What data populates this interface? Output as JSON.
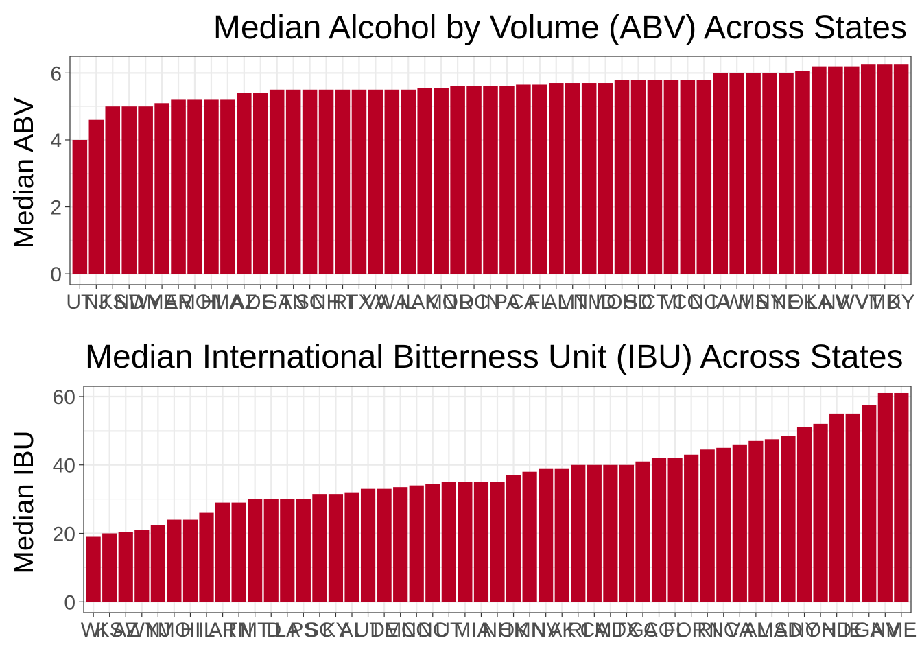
{
  "figure": {
    "bar_color": "#B80024",
    "grid_color": "#EBEBEB",
    "panel_border": "#333333"
  },
  "chart_data": [
    {
      "type": "bar",
      "title": "Median Alcohol by Volume (ABV) Across States",
      "xlabel": "",
      "ylabel": "Median ABV",
      "ylim": [
        0,
        6.5
      ],
      "yticks": [
        0,
        2,
        4,
        6
      ],
      "grid": true,
      "legend": "none",
      "categories": [
        "UT",
        "NJ",
        "KS",
        "ND",
        "WY",
        "ME",
        "AR",
        "MO",
        "HI",
        "MA",
        "AZ",
        "DE",
        "GA",
        "TN",
        "SC",
        "NH",
        "RI",
        "TX",
        "VA",
        "WA",
        "IL",
        "AK",
        "MN",
        "OR",
        "DC",
        "IN",
        "PA",
        "CA",
        "FL",
        "AL",
        "MT",
        "NM",
        "ID",
        "OH",
        "SD",
        "CT",
        "MI",
        "CO",
        "NC",
        "IA",
        "WI",
        "MS",
        "NY",
        "NE",
        "OK",
        "LA",
        "NV",
        "WV",
        "VT",
        "MD",
        "KY"
      ],
      "values": [
        4.0,
        4.6,
        5.0,
        5.0,
        5.0,
        5.1,
        5.2,
        5.2,
        5.2,
        5.2,
        5.4,
        5.4,
        5.5,
        5.5,
        5.5,
        5.5,
        5.5,
        5.5,
        5.5,
        5.5,
        5.5,
        5.55,
        5.55,
        5.6,
        5.6,
        5.6,
        5.6,
        5.65,
        5.65,
        5.7,
        5.7,
        5.7,
        5.7,
        5.8,
        5.8,
        5.8,
        5.8,
        5.8,
        5.8,
        6.0,
        6.0,
        6.0,
        6.0,
        6.0,
        6.05,
        6.2,
        6.2,
        6.2,
        6.25,
        6.25,
        6.25
      ]
    },
    {
      "type": "bar",
      "title": "Median International Bitterness Unit (IBU) Across States",
      "xlabel": "",
      "ylabel": "Median IBU",
      "ylim": [
        0,
        63
      ],
      "yticks": [
        0,
        20,
        40,
        60
      ],
      "grid": true,
      "legend": "none",
      "categories": [
        "WI",
        "KS",
        "AZ",
        "WY",
        "NJ",
        "MO",
        "HI",
        "IL",
        "AR",
        "TN",
        "MT",
        "ID",
        "LA",
        "PS",
        "SC",
        "KY",
        "AL",
        "UT",
        "DE",
        "MN",
        "CO",
        "NC",
        "UT",
        "MI",
        "IA",
        "NH",
        "OK",
        "MN",
        "NV",
        "AK",
        "RI",
        "CA",
        "MD",
        "TX",
        "GA",
        "CO",
        "FL",
        "OR",
        "RI",
        "NC",
        "VA",
        "AL",
        "MA",
        "SD",
        "NY",
        "OH",
        "ND",
        "IE",
        "GA",
        "NV",
        "ME"
      ],
      "values": [
        19,
        20,
        20.5,
        21,
        22.5,
        24,
        24,
        26,
        29,
        29,
        30,
        30,
        30,
        30,
        31.5,
        31.5,
        32,
        33,
        33,
        33.5,
        34,
        34.5,
        35,
        35,
        35,
        35,
        37,
        38,
        39,
        39,
        40,
        40,
        40,
        40,
        41,
        42,
        42,
        43,
        44.5,
        45,
        46,
        47,
        47.5,
        48.5,
        51,
        52,
        55,
        55,
        57.5,
        61,
        61
      ]
    }
  ]
}
